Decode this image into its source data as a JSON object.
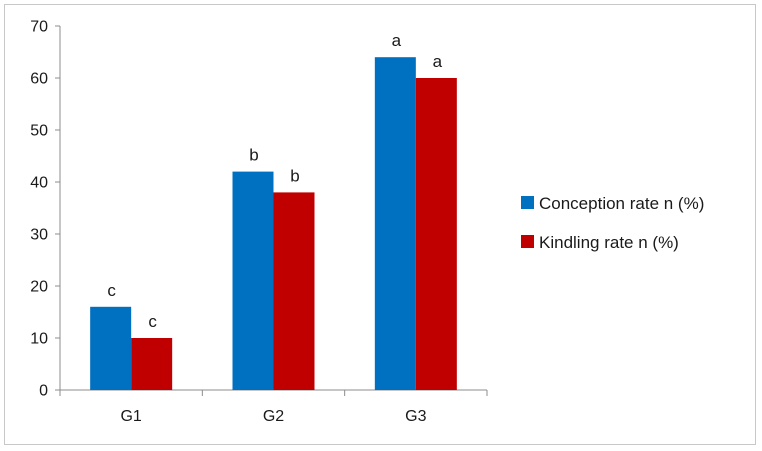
{
  "chart_data": {
    "type": "bar",
    "categories": [
      "G1",
      "G2",
      "G3"
    ],
    "series": [
      {
        "name": "Conception rate n (%)",
        "values": [
          16,
          42,
          64
        ],
        "color": "#0070C0",
        "labels": [
          "c",
          "b",
          "a"
        ]
      },
      {
        "name": "Kindling rate n (%)",
        "values": [
          10,
          38,
          60
        ],
        "color": "#C00000",
        "labels": [
          "c",
          "b",
          "a"
        ]
      }
    ],
    "ylim": [
      0,
      70
    ],
    "yticks": [
      0,
      10,
      20,
      30,
      40,
      50,
      60,
      70
    ],
    "title": "",
    "xlabel": "",
    "ylabel": "",
    "grid": false,
    "legend": "right"
  }
}
